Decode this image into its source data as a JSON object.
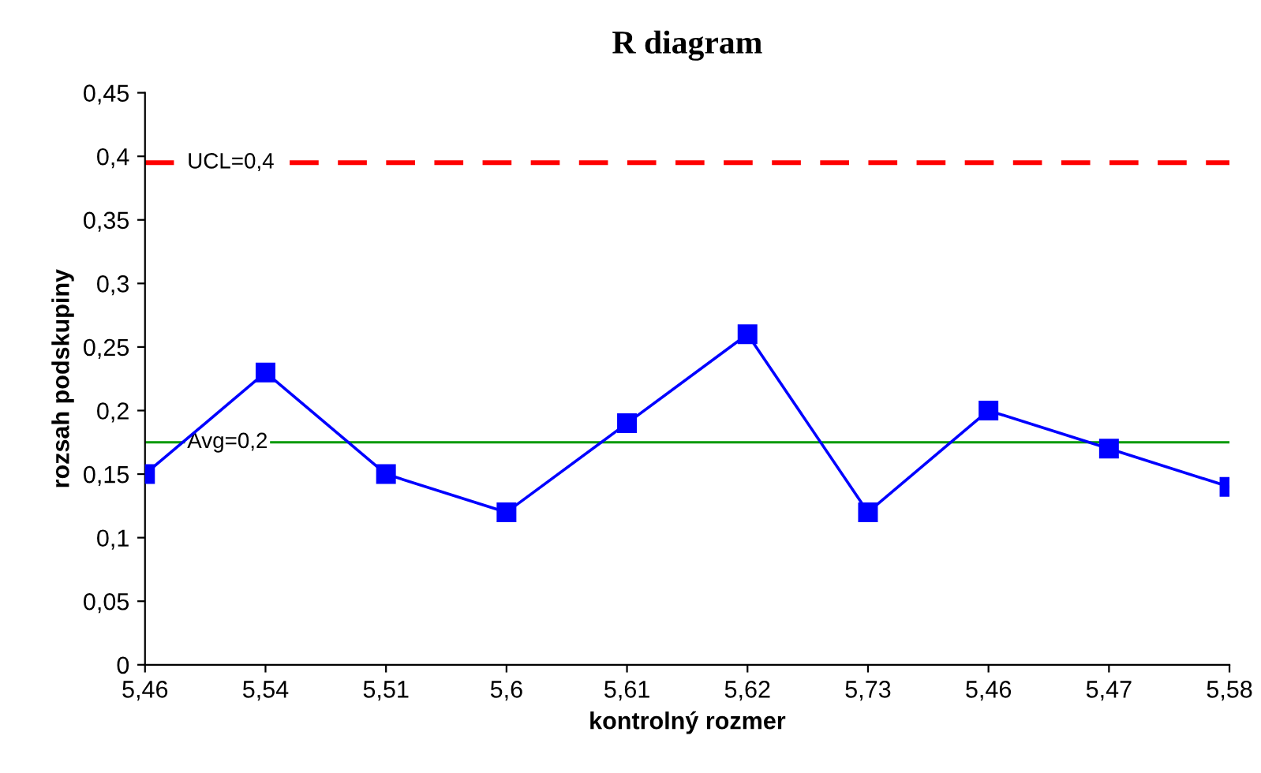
{
  "chart_data": {
    "type": "line",
    "title": "R diagram",
    "xlabel": "kontrolný rozmer",
    "ylabel": "rozsah podskupiny",
    "categories": [
      "5,46",
      "5,54",
      "5,51",
      "5,6",
      "5,61",
      "5,62",
      "5,73",
      "5,46",
      "5,47",
      "5,58"
    ],
    "series": [
      {
        "color": "#0000ff",
        "values": [
          0.15,
          0.23,
          0.15,
          0.12,
          0.19,
          0.26,
          0.12,
          0.2,
          0.17,
          0.14
        ]
      }
    ],
    "marker": "square",
    "line_style": "solid",
    "grid": false,
    "legend": false,
    "ylim": [
      0,
      0.45
    ],
    "yticks": [
      0,
      {
        "value": 0.05,
        "label": "0,05"
      },
      {
        "value": 0.1,
        "label": "0,1"
      },
      {
        "value": 0.15,
        "label": "0,15"
      },
      {
        "value": 0.2,
        "label": "0,2"
      },
      {
        "value": 0.25,
        "label": "0,25"
      },
      {
        "value": 0.3,
        "label": "0,3"
      },
      {
        "value": 0.35,
        "label": "0,35"
      },
      {
        "value": 0.4,
        "label": "0,4"
      },
      {
        "value": 0.45,
        "label": "0,45"
      }
    ],
    "ref_lines": [
      {
        "axis": "y",
        "value": 0.395,
        "label": "UCL=0,4",
        "color": "#ff0000",
        "line_style": "dashed"
      },
      {
        "axis": "y",
        "value": 0.175,
        "label": "Avg=0,2",
        "color": "#009900",
        "line_style": "solid"
      }
    ]
  }
}
